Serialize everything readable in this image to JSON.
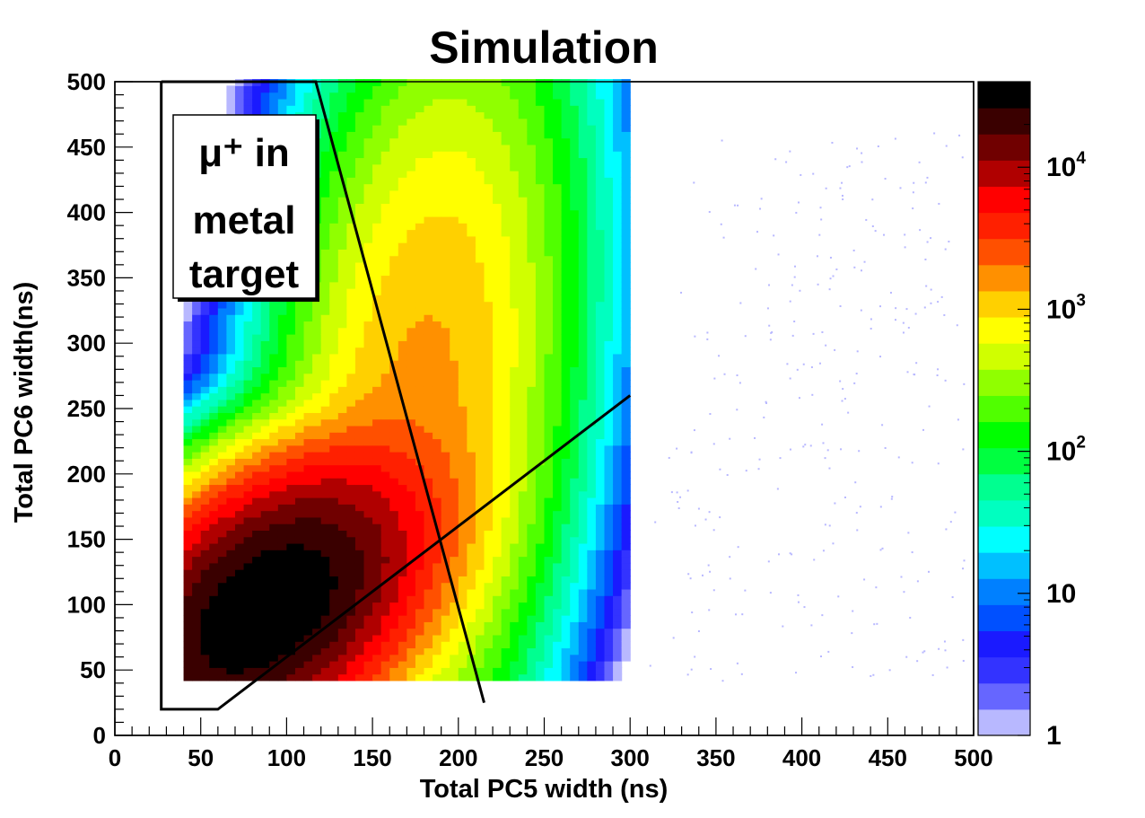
{
  "chart_data": {
    "type": "heatmap",
    "title": "Simulation",
    "xlabel": "Total PC5 width (ns)",
    "ylabel": "Total PC6 width(ns)",
    "xlim": [
      0,
      500
    ],
    "ylim": [
      0,
      500
    ],
    "x_ticks": [
      "0",
      "50",
      "100",
      "150",
      "200",
      "250",
      "300",
      "350",
      "400",
      "450",
      "500"
    ],
    "y_ticks": [
      "0",
      "50",
      "100",
      "150",
      "200",
      "250",
      "300",
      "350",
      "400",
      "450",
      "500"
    ],
    "z_scale": "log",
    "z_range": [
      1,
      40000
    ],
    "z_colors": [
      "#b8b8ff",
      "#6666ff",
      "#3333ff",
      "#1a1aff",
      "#0050ff",
      "#0080ff",
      "#00c0ff",
      "#00ffff",
      "#00ffc0",
      "#00ff90",
      "#00ff40",
      "#00ff00",
      "#50ff00",
      "#90ff00",
      "#d0ff00",
      "#ffff00",
      "#ffd000",
      "#ff9000",
      "#ff5000",
      "#ff2000",
      "#ff0000",
      "#b00000",
      "#700000",
      "#3a0000",
      "#000000"
    ],
    "z_tick_labels": [
      {
        "value": 1,
        "base": "1",
        "exp": ""
      },
      {
        "value": 10,
        "base": "10",
        "exp": ""
      },
      {
        "value": 100,
        "base": "10",
        "exp": "2"
      },
      {
        "value": 1000,
        "base": "10",
        "exp": "3"
      },
      {
        "value": 10000,
        "base": "10",
        "exp": "4"
      }
    ],
    "clusters": [
      {
        "name": "low-width peak",
        "cx": 88,
        "cy": 97,
        "sx": 38,
        "sy": 52,
        "peak": 40000
      },
      {
        "name": "upper band",
        "cx": 178,
        "cy": 255,
        "sx": 38,
        "sy": 140,
        "peak": 1500
      }
    ],
    "cut_lines": [
      {
        "points": [
          [
            27,
            500
          ],
          [
            27,
            20
          ],
          [
            60,
            20
          ],
          [
            300,
            260
          ]
        ]
      },
      {
        "points": [
          [
            27,
            500
          ],
          [
            117,
            500
          ],
          [
            215,
            25
          ]
        ]
      }
    ],
    "annotation": {
      "lines": [
        "μ⁺ in",
        "metal",
        "target"
      ]
    }
  }
}
